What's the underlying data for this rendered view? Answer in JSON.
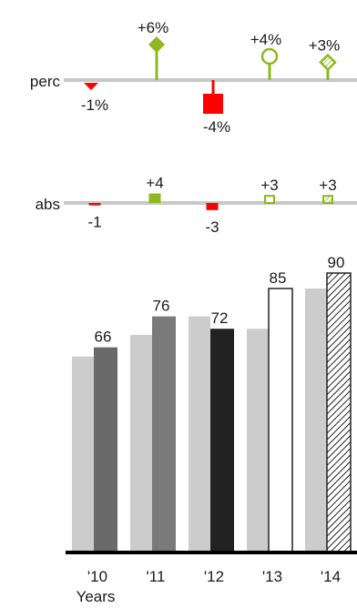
{
  "chart_data": [
    {
      "type": "pin",
      "row_label": "perc",
      "categories": [
        "'10",
        "'11",
        "'12",
        "'13",
        "'14"
      ],
      "values": [
        -1,
        6,
        -4,
        4,
        3
      ],
      "labels": [
        "-1%",
        "+6%",
        "-4%",
        "+4%",
        "+3%"
      ],
      "markers": [
        "triangle-down",
        "diamond",
        "square",
        "circle-outline",
        "diamond-hatched"
      ],
      "colors": {
        "positive": "#8db81f",
        "negative": "#ff0000",
        "baseline": "#c8c8c8"
      }
    },
    {
      "type": "pin",
      "row_label": "abs",
      "categories": [
        "'10",
        "'11",
        "'12",
        "'13",
        "'14"
      ],
      "values": [
        -1,
        4,
        -3,
        3,
        3
      ],
      "labels": [
        "-1",
        "+4",
        "-3",
        "+3",
        "+3"
      ],
      "markers": [
        "bar",
        "bar",
        "bar",
        "bar-outline",
        "bar-hatched"
      ],
      "colors": {
        "positive": "#8db81f",
        "negative": "#ff0000",
        "baseline": "#c8c8c8"
      }
    },
    {
      "type": "bar",
      "categories": [
        "'10",
        "'11",
        "'12",
        "'13",
        "'14"
      ],
      "xlabel": "Years",
      "series": [
        {
          "values": [
            63,
            70,
            76,
            72,
            85
          ],
          "color": "#cccccc"
        },
        {
          "values": [
            66,
            76,
            72,
            85,
            90
          ],
          "labels": [
            "66",
            "76",
            "72",
            "85",
            "90"
          ],
          "fills": [
            "#6a6a6a",
            "#7a7a7a",
            "#222222",
            "outline",
            "hatched"
          ]
        }
      ],
      "ylim": [
        0,
        90
      ]
    }
  ]
}
